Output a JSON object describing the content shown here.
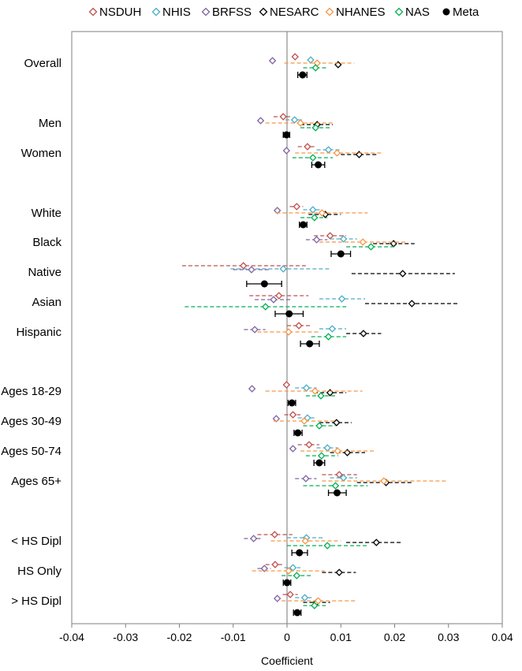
{
  "chart_data": {
    "type": "scatter",
    "subtype": "forest-plot",
    "title": "",
    "xlabel": "Coefficient",
    "ylabel": "",
    "xlim": [
      -0.04,
      0.04
    ],
    "x_ticks": [
      "-0.04",
      "-0.03",
      "-0.02",
      "-0.01",
      "0",
      "0.01",
      "0.02",
      "0.03",
      "0.04"
    ],
    "x_tick_values": [
      -0.04,
      -0.03,
      -0.02,
      -0.01,
      0,
      0.01,
      0.02,
      0.03,
      0.04
    ],
    "reference_line": 0,
    "legend_position": "top",
    "grid": false,
    "series": [
      {
        "name": "NSDUH",
        "color": "#c0504d",
        "marker": "open-diamond"
      },
      {
        "name": "NHIS",
        "color": "#4bacc6",
        "marker": "open-diamond"
      },
      {
        "name": "BRFSS",
        "color": "#8064a2",
        "marker": "open-diamond"
      },
      {
        "name": "NESARC",
        "color": "#000000",
        "marker": "open-diamond"
      },
      {
        "name": "NHANES",
        "color": "#f79646",
        "marker": "open-diamond"
      },
      {
        "name": "NAS",
        "color": "#00b050",
        "marker": "open-diamond"
      },
      {
        "name": "Meta",
        "color": "#000000",
        "marker": "filled-circle"
      }
    ],
    "groups": [
      {
        "label": "Overall",
        "points": [
          {
            "series": "NSDUH",
            "est": 0.0015
          },
          {
            "series": "NHIS",
            "est": 0.0044
          },
          {
            "series": "BRFSS",
            "est": -0.0027
          },
          {
            "series": "NESARC",
            "est": 0.0095
          },
          {
            "series": "NHANES",
            "est": 0.0056,
            "lo": -0.0005,
            "hi": 0.0125
          },
          {
            "series": "NAS",
            "est": 0.0053,
            "lo": 0.003,
            "hi": 0.0075
          },
          {
            "series": "Meta",
            "est": 0.0029,
            "lo": 0.002,
            "hi": 0.0037
          }
        ]
      },
      {
        "label": "Men",
        "points": [
          {
            "series": "NSDUH",
            "est": -0.0007,
            "lo": -0.0025,
            "hi": 0.001
          },
          {
            "series": "NHIS",
            "est": 0.0014,
            "lo": -0.0003,
            "hi": 0.0031
          },
          {
            "series": "BRFSS",
            "est": -0.0049
          },
          {
            "series": "NESARC",
            "est": 0.0056,
            "lo": 0.0025,
            "hi": 0.0085
          },
          {
            "series": "NHANES",
            "est": 0.0025,
            "lo": -0.004,
            "hi": 0.0085
          },
          {
            "series": "NAS",
            "est": 0.0053,
            "lo": 0.0025,
            "hi": 0.008
          },
          {
            "series": "Meta",
            "est": -0.0001,
            "lo": -0.0007,
            "hi": 0.0005
          }
        ]
      },
      {
        "label": "Women",
        "points": [
          {
            "series": "NSDUH",
            "est": 0.0038,
            "lo": 0.002,
            "hi": 0.0055
          },
          {
            "series": "NHIS",
            "est": 0.0077,
            "lo": 0.0055,
            "hi": 0.01
          },
          {
            "series": "BRFSS",
            "est": -0.0001
          },
          {
            "series": "NESARC",
            "est": 0.0134,
            "lo": 0.01,
            "hi": 0.017
          },
          {
            "series": "NHANES",
            "est": 0.0093,
            "lo": 0.0015,
            "hi": 0.0175
          },
          {
            "series": "NAS",
            "est": 0.0048,
            "lo": 0.001,
            "hi": 0.0085
          },
          {
            "series": "Meta",
            "est": 0.0058,
            "lo": 0.0046,
            "hi": 0.007
          }
        ]
      },
      {
        "label": "White",
        "points": [
          {
            "series": "NSDUH",
            "est": 0.0018,
            "lo": 0.0005,
            "hi": 0.003
          },
          {
            "series": "NHIS",
            "est": 0.0048,
            "lo": 0.003,
            "hi": 0.0065
          },
          {
            "series": "BRFSS",
            "est": -0.0018
          },
          {
            "series": "NESARC",
            "est": 0.0071,
            "lo": 0.004,
            "hi": 0.01
          },
          {
            "series": "NHANES",
            "est": 0.0065,
            "lo": -0.002,
            "hi": 0.015
          },
          {
            "series": "NAS",
            "est": 0.0051,
            "lo": 0.0025,
            "hi": 0.0075
          },
          {
            "series": "Meta",
            "est": 0.003,
            "lo": 0.0023,
            "hi": 0.0037
          }
        ]
      },
      {
        "label": "Black",
        "points": [
          {
            "series": "NSDUH",
            "est": 0.008,
            "lo": 0.005,
            "hi": 0.011
          },
          {
            "series": "NHIS",
            "est": 0.0105,
            "lo": 0.008,
            "hi": 0.013
          },
          {
            "series": "BRFSS",
            "est": 0.0055,
            "lo": 0.0035,
            "hi": 0.0075
          },
          {
            "series": "NESARC",
            "est": 0.0198,
            "lo": 0.016,
            "hi": 0.0237
          },
          {
            "series": "NHANES",
            "est": 0.0141,
            "lo": 0.006,
            "hi": 0.022
          },
          {
            "series": "NAS",
            "est": 0.0156,
            "lo": 0.011,
            "hi": 0.02
          },
          {
            "series": "Meta",
            "est": 0.01,
            "lo": 0.0082,
            "hi": 0.0118
          }
        ]
      },
      {
        "label": "Native",
        "points": [
          {
            "series": "NSDUH",
            "est": -0.0081,
            "lo": -0.0195,
            "hi": 0.0035
          },
          {
            "series": "NHIS",
            "est": -0.0007,
            "lo": -0.0105,
            "hi": 0.008
          },
          {
            "series": "BRFSS",
            "est": -0.0066,
            "lo": -0.01,
            "hi": -0.003
          },
          {
            "series": "NESARC",
            "est": 0.0215,
            "lo": 0.012,
            "hi": 0.0312
          },
          {
            "series": "Meta",
            "est": -0.0042,
            "lo": -0.0075,
            "hi": -0.001
          }
        ]
      },
      {
        "label": "Asian",
        "points": [
          {
            "series": "NSDUH",
            "est": -0.0015,
            "lo": -0.007,
            "hi": 0.004
          },
          {
            "series": "NHIS",
            "est": 0.0102,
            "lo": 0.006,
            "hi": 0.0145
          },
          {
            "series": "BRFSS",
            "est": -0.0025,
            "lo": -0.006,
            "hi": 0.001
          },
          {
            "series": "NESARC",
            "est": 0.0232,
            "lo": 0.0145,
            "hi": 0.032
          },
          {
            "series": "NAS",
            "est": -0.004,
            "lo": -0.019,
            "hi": 0.011
          },
          {
            "series": "Meta",
            "est": 0.0004,
            "lo": -0.0022,
            "hi": 0.003
          }
        ]
      },
      {
        "label": "Hispanic",
        "points": [
          {
            "series": "NSDUH",
            "est": 0.0022,
            "lo": 0.0,
            "hi": 0.0045
          },
          {
            "series": "NHIS",
            "est": 0.0084,
            "lo": 0.006,
            "hi": 0.011
          },
          {
            "series": "BRFSS",
            "est": -0.006,
            "lo": -0.008,
            "hi": -0.004
          },
          {
            "series": "NESARC",
            "est": 0.0142,
            "lo": 0.011,
            "hi": 0.0175
          },
          {
            "series": "NHANES",
            "est": 0.0003,
            "lo": -0.0055,
            "hi": 0.006
          },
          {
            "series": "NAS",
            "est": 0.0077,
            "lo": 0.0045,
            "hi": 0.011
          },
          {
            "series": "Meta",
            "est": 0.0042,
            "lo": 0.0025,
            "hi": 0.006
          }
        ]
      },
      {
        "label": "Ages 18-29",
        "points": [
          {
            "series": "NSDUH",
            "est": -0.0001
          },
          {
            "series": "NHIS",
            "est": 0.0036,
            "lo": 0.0015,
            "hi": 0.0055
          },
          {
            "series": "BRFSS",
            "est": -0.0065
          },
          {
            "series": "NESARC",
            "est": 0.008,
            "lo": 0.005,
            "hi": 0.011
          },
          {
            "series": "NHANES",
            "est": 0.0052,
            "lo": -0.004,
            "hi": 0.014
          },
          {
            "series": "NAS",
            "est": 0.0063,
            "lo": 0.0035,
            "hi": 0.009
          },
          {
            "series": "Meta",
            "est": 0.0009,
            "lo": 0.0002,
            "hi": 0.0016
          }
        ]
      },
      {
        "label": "Ages 30-49",
        "points": [
          {
            "series": "NSDUH",
            "est": 0.0011,
            "lo": -0.0005,
            "hi": 0.0025
          },
          {
            "series": "NHIS",
            "est": 0.0038,
            "lo": 0.002,
            "hi": 0.0055
          },
          {
            "series": "BRFSS",
            "est": -0.002
          },
          {
            "series": "NESARC",
            "est": 0.0092,
            "lo": 0.006,
            "hi": 0.012
          },
          {
            "series": "NHANES",
            "est": 0.0032,
            "lo": -0.0025,
            "hi": 0.009
          },
          {
            "series": "NAS",
            "est": 0.006,
            "lo": 0.003,
            "hi": 0.009
          },
          {
            "series": "Meta",
            "est": 0.002,
            "lo": 0.0013,
            "hi": 0.0028
          }
        ]
      },
      {
        "label": "Ages 50-74",
        "points": [
          {
            "series": "NSDUH",
            "est": 0.0041,
            "lo": 0.002,
            "hi": 0.006
          },
          {
            "series": "NHIS",
            "est": 0.0075,
            "lo": 0.0055,
            "hi": 0.0095
          },
          {
            "series": "BRFSS",
            "est": 0.0011
          },
          {
            "series": "NESARC",
            "est": 0.0112,
            "lo": 0.008,
            "hi": 0.0145
          },
          {
            "series": "NHANES",
            "est": 0.0094,
            "lo": 0.0025,
            "hi": 0.0165
          },
          {
            "series": "NAS",
            "est": 0.0064,
            "lo": 0.0035,
            "hi": 0.0095
          },
          {
            "series": "Meta",
            "est": 0.006,
            "lo": 0.005,
            "hi": 0.007
          }
        ]
      },
      {
        "label": "Ages 65+",
        "points": [
          {
            "series": "NSDUH",
            "est": 0.0097,
            "lo": 0.0065,
            "hi": 0.013
          },
          {
            "series": "NHIS",
            "est": 0.0105,
            "lo": 0.008,
            "hi": 0.013
          },
          {
            "series": "BRFSS",
            "est": 0.0035,
            "lo": 0.0015,
            "hi": 0.0055
          },
          {
            "series": "NESARC",
            "est": 0.0184,
            "lo": 0.013,
            "hi": 0.0235
          },
          {
            "series": "NHANES",
            "est": 0.018,
            "lo": 0.0065,
            "hi": 0.0295
          },
          {
            "series": "NAS",
            "est": 0.009,
            "lo": 0.003,
            "hi": 0.015
          },
          {
            "series": "Meta",
            "est": 0.0093,
            "lo": 0.0077,
            "hi": 0.011
          }
        ]
      },
      {
        "label": "< HS Dipl",
        "points": [
          {
            "series": "NSDUH",
            "est": -0.0023,
            "lo": -0.0055,
            "hi": 0.001
          },
          {
            "series": "NHIS",
            "est": 0.0036,
            "lo": 0.0,
            "hi": 0.007
          },
          {
            "series": "BRFSS",
            "est": -0.0062,
            "lo": -0.008,
            "hi": -0.0045
          },
          {
            "series": "NESARC",
            "est": 0.0166,
            "lo": 0.011,
            "hi": 0.0215
          },
          {
            "series": "NHANES",
            "est": 0.0034,
            "lo": -0.003,
            "hi": 0.01
          },
          {
            "series": "NAS",
            "est": 0.0075,
            "lo": 0.0,
            "hi": 0.015
          },
          {
            "series": "Meta",
            "est": 0.0023,
            "lo": 0.0009,
            "hi": 0.0038
          }
        ]
      },
      {
        "label": "HS Only",
        "points": [
          {
            "series": "NSDUH",
            "est": -0.0022,
            "lo": -0.004,
            "hi": -0.0005
          },
          {
            "series": "NHIS",
            "est": 0.0011,
            "lo": -0.0005,
            "hi": 0.0025
          },
          {
            "series": "BRFSS",
            "est": -0.0042,
            "lo": -0.0055,
            "hi": -0.003
          },
          {
            "series": "NESARC",
            "est": 0.0097,
            "lo": 0.0065,
            "hi": 0.0128
          },
          {
            "series": "NHANES",
            "est": 0.0003,
            "lo": -0.0065,
            "hi": 0.007
          },
          {
            "series": "NAS",
            "est": 0.0018,
            "lo": -0.001,
            "hi": 0.0045
          },
          {
            "series": "Meta",
            "est": 0.0,
            "lo": -0.0007,
            "hi": 0.0007
          }
        ]
      },
      {
        "label": "> HS Dipl",
        "points": [
          {
            "series": "NSDUH",
            "est": 0.0006,
            "lo": -0.0008,
            "hi": 0.002
          },
          {
            "series": "NHIS",
            "est": 0.0033,
            "lo": 0.0015,
            "hi": 0.005
          },
          {
            "series": "BRFSS",
            "est": -0.0018
          },
          {
            "series": "NESARC",
            "est": 0.0055,
            "lo": 0.003,
            "hi": 0.008
          },
          {
            "series": "NHANES",
            "est": 0.0058,
            "lo": -0.001,
            "hi": 0.0128
          },
          {
            "series": "NAS",
            "est": 0.0051,
            "lo": 0.003,
            "hi": 0.0072
          },
          {
            "series": "Meta",
            "est": 0.0019,
            "lo": 0.0012,
            "hi": 0.0026
          }
        ]
      }
    ]
  }
}
